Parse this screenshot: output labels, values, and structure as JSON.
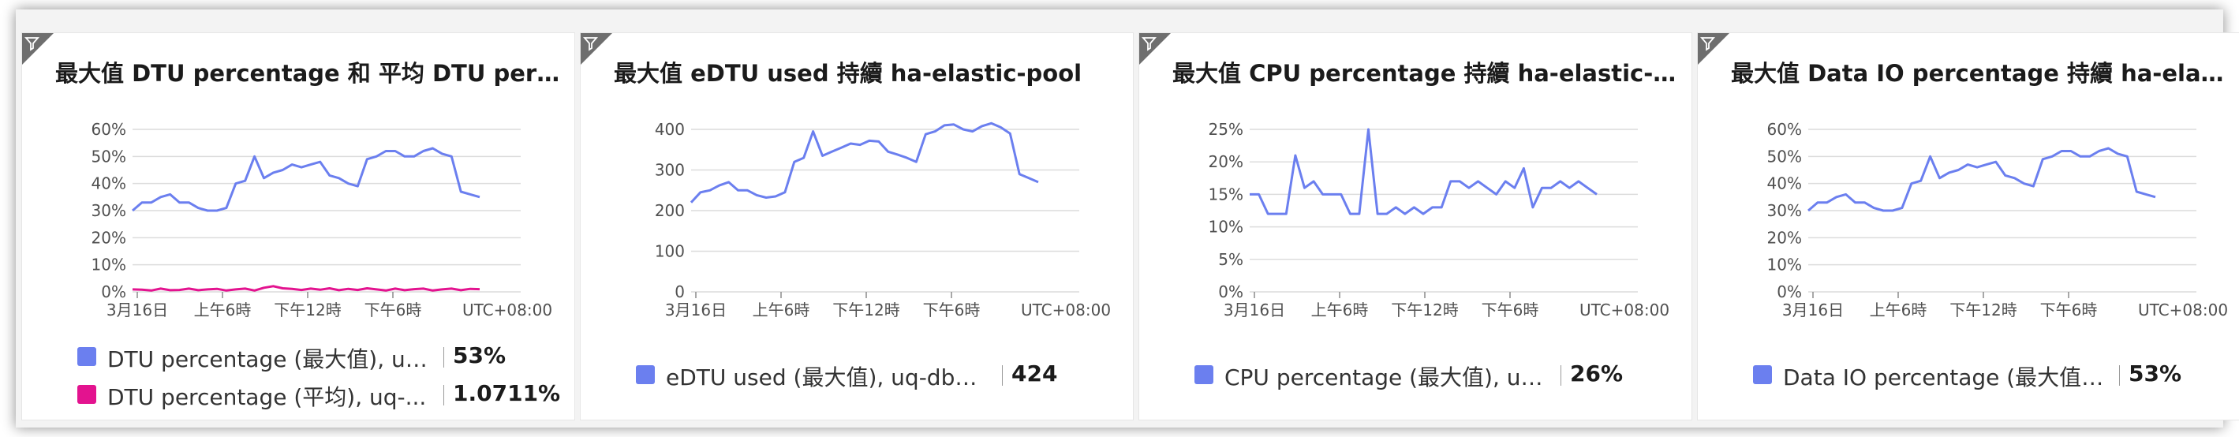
{
  "colors": {
    "series_max": "#6b7fef",
    "series_avg": "#e3138f",
    "grid": "#dcdcdc",
    "axis": "#8a8a8a"
  },
  "tiles": [
    {
      "title": "最大值 DTU percentage 和 平均 DTU percen...",
      "filter_icon": "filter-icon",
      "legend": [
        {
          "name": "DTU percentage (最大值), uq-d...",
          "value": "53%"
        },
        {
          "name": "DTU percentage (平均), uq-...",
          "value": "1.0711%"
        }
      ]
    },
    {
      "title": "最大值 eDTU used 持續 ha-elastic-pool",
      "filter_icon": "filter-icon",
      "legend": [
        {
          "name": "eDTU used (最大值), uq-db1-v...",
          "value": "424"
        }
      ]
    },
    {
      "title": "最大值 CPU percentage 持續 ha-elastic-pool",
      "filter_icon": "filter-icon",
      "legend": [
        {
          "name": "CPU percentage (最大值), uq-d...",
          "value": "26%"
        }
      ]
    },
    {
      "title": "最大值 Data IO percentage 持續 ha-elastic-...",
      "filter_icon": "filter-icon",
      "legend": [
        {
          "name": "Data IO percentage (最大值), u...",
          "value": "53%"
        }
      ]
    }
  ],
  "chart_data": [
    {
      "type": "line",
      "x_tick_labels": [
        "3月16日",
        "上午6時",
        "下午12時",
        "下午6時",
        "UTC+08:00"
      ],
      "y_tick_labels": [
        "60%",
        "50%",
        "40%",
        "30%",
        "20%",
        "10%",
        "0%"
      ],
      "ylim": [
        0,
        60
      ],
      "grid": true,
      "series": [
        {
          "name": "DTU percentage (最大值), uq-d...",
          "color": "#6b7fef",
          "values": [
            30,
            33,
            33,
            35,
            36,
            33,
            33,
            31,
            30,
            30,
            31,
            40,
            41,
            50,
            42,
            44,
            45,
            47,
            46,
            47,
            48,
            43,
            42,
            40,
            39,
            49,
            50,
            52,
            52,
            50,
            50,
            52,
            53,
            51,
            50,
            37,
            36,
            35
          ]
        },
        {
          "name": "DTU percentage (平均), uq-...",
          "color": "#e3138f",
          "values": [
            0.9,
            0.8,
            0.5,
            1.2,
            0.6,
            0.7,
            1.2,
            0.6,
            0.9,
            1.1,
            0.5,
            0.9,
            1.2,
            0.5,
            1.5,
            2.1,
            1.3,
            1.1,
            0.7,
            1.2,
            0.8,
            1.3,
            0.6,
            1.1,
            0.7,
            1.3,
            0.9,
            0.5,
            1.2,
            0.6,
            1.0,
            1.2,
            0.5,
            0.9,
            1.2,
            0.6,
            1.1,
            1.0
          ]
        }
      ]
    },
    {
      "type": "line",
      "x_tick_labels": [
        "3月16日",
        "上午6時",
        "下午12時",
        "下午6時",
        "UTC+08:00"
      ],
      "y_tick_labels": [
        "400",
        "300",
        "200",
        "100",
        "0"
      ],
      "ylim": [
        0,
        400
      ],
      "grid": true,
      "series": [
        {
          "name": "eDTU used (最大值), uq-db1-v...",
          "color": "#6b7fef",
          "values": [
            220,
            245,
            250,
            262,
            270,
            250,
            250,
            238,
            232,
            235,
            245,
            320,
            330,
            395,
            335,
            345,
            355,
            365,
            362,
            372,
            370,
            345,
            338,
            330,
            320,
            388,
            395,
            410,
            412,
            400,
            395,
            408,
            415,
            405,
            390,
            290,
            280,
            270
          ]
        }
      ]
    },
    {
      "type": "line",
      "x_tick_labels": [
        "3月16日",
        "上午6時",
        "下午12時",
        "下午6時",
        "UTC+08:00"
      ],
      "y_tick_labels": [
        "25%",
        "20%",
        "15%",
        "10%",
        "5%",
        "0%"
      ],
      "ylim": [
        0,
        25
      ],
      "grid": true,
      "series": [
        {
          "name": "CPU percentage (最大值), uq-d...",
          "color": "#6b7fef",
          "values": [
            15,
            15,
            12,
            12,
            12,
            21,
            16,
            17,
            15,
            15,
            15,
            12,
            12,
            25,
            12,
            12,
            13,
            12,
            13,
            12,
            13,
            13,
            17,
            17,
            16,
            17,
            16,
            15,
            17,
            16,
            19,
            13,
            16,
            16,
            17,
            16,
            17,
            16,
            15
          ]
        }
      ]
    },
    {
      "type": "line",
      "x_tick_labels": [
        "3月16日",
        "上午6時",
        "下午12時",
        "下午6時",
        "UTC+08:00"
      ],
      "y_tick_labels": [
        "60%",
        "50%",
        "40%",
        "30%",
        "20%",
        "10%",
        "0%"
      ],
      "ylim": [
        0,
        60
      ],
      "grid": true,
      "series": [
        {
          "name": "Data IO percentage (最大值), u...",
          "color": "#6b7fef",
          "values": [
            30,
            33,
            33,
            35,
            36,
            33,
            33,
            31,
            30,
            30,
            31,
            40,
            41,
            50,
            42,
            44,
            45,
            47,
            46,
            47,
            48,
            43,
            42,
            40,
            39,
            49,
            50,
            52,
            52,
            50,
            50,
            52,
            53,
            51,
            50,
            37,
            36,
            35
          ]
        }
      ]
    }
  ]
}
